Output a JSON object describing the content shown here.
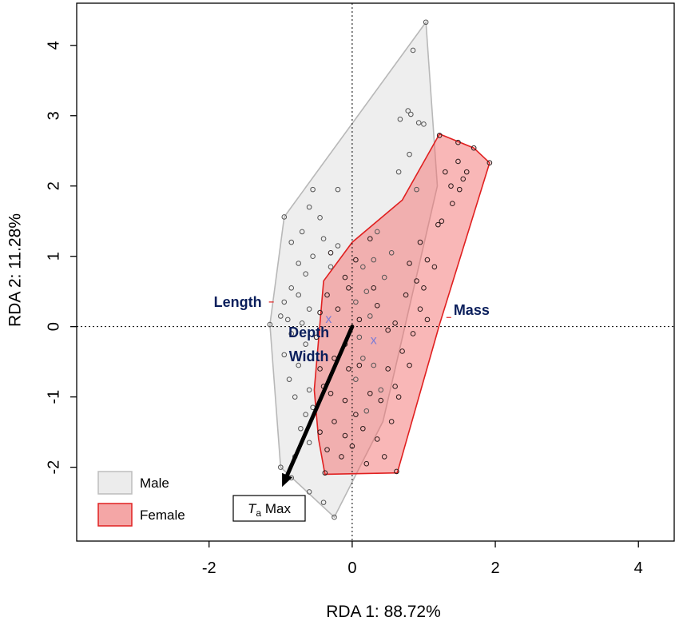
{
  "chart_data": {
    "type": "scatter",
    "xlabel": "RDA 1: 88.72%",
    "ylabel": "RDA 2: 11.28%",
    "xlim": [
      -3.85,
      4.5
    ],
    "ylim": [
      -3.05,
      4.6
    ],
    "xticks": [
      -2,
      0,
      2,
      4
    ],
    "yticks": [
      -2,
      -1,
      0,
      1,
      2,
      3,
      4
    ],
    "reference_lines": {
      "x": 0,
      "y": 0,
      "style": "dotted"
    },
    "legend": {
      "position": "bottom-left",
      "items": [
        {
          "label": "Male",
          "color": "#ececec",
          "border": "#bdbdbd"
        },
        {
          "label": "Female",
          "color": "#f4a6a6",
          "border": "#e02020"
        }
      ]
    },
    "hulls": [
      {
        "name": "Male",
        "fill": "#e8e8e8",
        "stroke": "#b8b8b8",
        "opacity": 0.75,
        "vertices": [
          [
            1.03,
            4.33
          ],
          [
            1.19,
            2.0
          ],
          [
            0.43,
            -1.35
          ],
          [
            -0.25,
            -2.71
          ],
          [
            -1.0,
            -2.0
          ],
          [
            -1.15,
            0.03
          ],
          [
            -0.95,
            1.56
          ]
        ]
      },
      {
        "name": "Female",
        "fill": "#f36f6f",
        "stroke": "#e02020",
        "opacity": 0.5,
        "vertices": [
          [
            1.22,
            2.74
          ],
          [
            1.7,
            2.54
          ],
          [
            1.92,
            2.33
          ],
          [
            1.22,
            0.03
          ],
          [
            0.63,
            -2.08
          ],
          [
            -0.38,
            -2.1
          ],
          [
            -0.47,
            -1.6
          ],
          [
            -0.53,
            -0.9
          ],
          [
            -0.4,
            0.65
          ],
          [
            0.0,
            1.2
          ],
          [
            0.7,
            1.8
          ]
        ]
      }
    ],
    "centroids": [
      {
        "name": "Male",
        "x": -0.33,
        "y": 0.12,
        "marker": "x",
        "color": "#7b7bd6"
      },
      {
        "name": "Female",
        "x": 0.3,
        "y": -0.18,
        "marker": "x",
        "color": "#7b7bd6"
      }
    ],
    "vectors": [
      {
        "label": "Length",
        "x": -1.13,
        "y": 0.35
      },
      {
        "label": "Mass",
        "x": 1.35,
        "y": 0.13
      },
      {
        "label": "Depth",
        "x": -0.55,
        "y": -0.22
      },
      {
        "label": "Width",
        "x": -0.55,
        "y": -0.47
      }
    ],
    "arrow": {
      "label_prefix": "T",
      "label_sub": "a",
      "label_suffix": "Max",
      "x0": 0,
      "y0": 0,
      "x1": -0.98,
      "y1": -2.28
    },
    "series": [
      {
        "name": "Male",
        "points": [
          [
            1.03,
            4.33
          ],
          [
            0.85,
            3.93
          ],
          [
            0.78,
            3.07
          ],
          [
            0.82,
            3.02
          ],
          [
            0.93,
            2.9
          ],
          [
            1.0,
            2.88
          ],
          [
            0.67,
            2.95
          ],
          [
            0.8,
            2.45
          ],
          [
            0.65,
            2.2
          ],
          [
            0.9,
            1.95
          ],
          [
            -0.95,
            1.56
          ],
          [
            -0.55,
            1.95
          ],
          [
            -0.6,
            1.7
          ],
          [
            -0.45,
            1.55
          ],
          [
            -0.2,
            1.95
          ],
          [
            -0.4,
            1.25
          ],
          [
            -0.7,
            1.35
          ],
          [
            -0.85,
            1.2
          ],
          [
            -0.55,
            1.0
          ],
          [
            -0.75,
            0.9
          ],
          [
            -0.65,
            0.75
          ],
          [
            -0.3,
            0.85
          ],
          [
            -0.2,
            1.15
          ],
          [
            -0.85,
            0.55
          ],
          [
            -0.75,
            0.45
          ],
          [
            -0.95,
            0.35
          ],
          [
            -0.6,
            0.25
          ],
          [
            -1.0,
            0.15
          ],
          [
            -0.9,
            0.1
          ],
          [
            -0.7,
            0.05
          ],
          [
            -1.15,
            0.03
          ],
          [
            -0.85,
            -0.1
          ],
          [
            -0.65,
            -0.25
          ],
          [
            -0.95,
            -0.4
          ],
          [
            -0.75,
            -0.55
          ],
          [
            -0.88,
            -0.75
          ],
          [
            -0.6,
            -0.9
          ],
          [
            -0.8,
            -1.0
          ],
          [
            -0.55,
            -1.15
          ],
          [
            -0.65,
            -1.25
          ],
          [
            -0.72,
            -1.45
          ],
          [
            -0.6,
            -1.65
          ],
          [
            -0.8,
            -1.85
          ],
          [
            -1.0,
            -2.0
          ],
          [
            -0.85,
            -2.15
          ],
          [
            -0.6,
            -2.35
          ],
          [
            -0.4,
            -2.5
          ],
          [
            -0.25,
            -2.71
          ],
          [
            0.15,
            0.85
          ],
          [
            0.35,
            1.35
          ],
          [
            0.2,
            0.5
          ],
          [
            0.05,
            0.35
          ],
          [
            0.45,
            0.7
          ],
          [
            0.25,
            0.15
          ],
          [
            0.1,
            -0.15
          ],
          [
            0.3,
            -0.55
          ],
          [
            0.4,
            -0.9
          ],
          [
            0.2,
            -1.2
          ],
          [
            0.05,
            -0.75
          ],
          [
            0.3,
            0.95
          ],
          [
            0.55,
            1.05
          ],
          [
            0.15,
            -0.45
          ]
        ]
      },
      {
        "name": "Female",
        "points": [
          [
            1.22,
            2.72
          ],
          [
            1.48,
            2.62
          ],
          [
            1.7,
            2.54
          ],
          [
            1.92,
            2.33
          ],
          [
            1.48,
            2.35
          ],
          [
            1.55,
            2.1
          ],
          [
            1.38,
            2.0
          ],
          [
            1.5,
            1.95
          ],
          [
            1.6,
            2.2
          ],
          [
            1.3,
            2.2
          ],
          [
            1.4,
            1.75
          ],
          [
            1.25,
            1.5
          ],
          [
            1.2,
            1.45
          ],
          [
            0.95,
            1.2
          ],
          [
            1.05,
            0.95
          ],
          [
            0.8,
            0.9
          ],
          [
            0.9,
            0.65
          ],
          [
            0.75,
            0.45
          ],
          [
            0.95,
            0.25
          ],
          [
            1.05,
            0.1
          ],
          [
            0.6,
            0.05
          ],
          [
            0.85,
            -0.1
          ],
          [
            0.7,
            -0.35
          ],
          [
            0.5,
            -0.6
          ],
          [
            0.6,
            -0.85
          ],
          [
            0.4,
            -1.05
          ],
          [
            0.55,
            -1.35
          ],
          [
            0.35,
            -1.6
          ],
          [
            0.45,
            -1.85
          ],
          [
            0.2,
            -1.95
          ],
          [
            0.0,
            -1.7
          ],
          [
            -0.15,
            -1.85
          ],
          [
            -0.35,
            -1.75
          ],
          [
            -0.25,
            -1.35
          ],
          [
            -0.45,
            -1.5
          ],
          [
            0.05,
            -1.25
          ],
          [
            0.25,
            -0.95
          ],
          [
            -0.1,
            -1.05
          ],
          [
            -0.3,
            -0.95
          ],
          [
            -0.05,
            -0.6
          ],
          [
            -0.25,
            -0.45
          ],
          [
            -0.45,
            -0.6
          ],
          [
            -0.1,
            -0.25
          ],
          [
            0.1,
            0.1
          ],
          [
            -0.2,
            0.25
          ],
          [
            -0.35,
            0.45
          ],
          [
            -0.1,
            0.7
          ],
          [
            0.05,
            0.95
          ],
          [
            0.25,
            1.25
          ],
          [
            -0.3,
            1.05
          ],
          [
            -0.05,
            0.55
          ],
          [
            0.35,
            0.3
          ],
          [
            0.5,
            -0.05
          ],
          [
            -0.45,
            0.2
          ],
          [
            -0.5,
            -0.15
          ],
          [
            -0.4,
            -0.85
          ],
          [
            0.15,
            -1.45
          ],
          [
            -0.1,
            -1.55
          ],
          [
            0.62,
            -2.06
          ],
          [
            -0.38,
            -2.08
          ],
          [
            0.65,
            -1.0
          ],
          [
            0.8,
            -0.55
          ],
          [
            1.0,
            0.55
          ],
          [
            1.15,
            0.85
          ],
          [
            0.3,
            0.55
          ],
          [
            0.1,
            -0.55
          ]
        ]
      }
    ]
  }
}
